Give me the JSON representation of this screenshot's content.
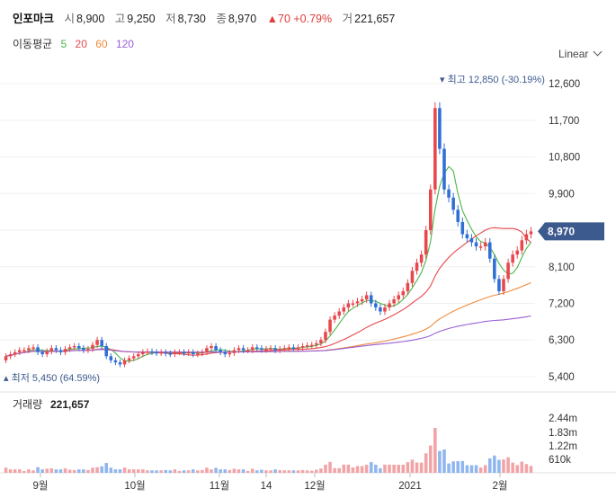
{
  "header": {
    "name": "인포마크",
    "open_label": "시",
    "open": "8,900",
    "high_label": "고",
    "high": "9,250",
    "low_label": "저",
    "low": "8,730",
    "close_label": "종",
    "close": "8,970",
    "change": "▲70 +0.79%",
    "volume_label": "거",
    "volume": "221,657"
  },
  "moving_average": {
    "label": "이동평균",
    "periods": [
      {
        "value": "5",
        "color": "#49b649"
      },
      {
        "value": "20",
        "color": "#e8474c"
      },
      {
        "value": "60",
        "color": "#ef8a3a"
      },
      {
        "value": "120",
        "color": "#9a5fd8"
      }
    ]
  },
  "scale_selector": {
    "label": "Linear",
    "icon": "chevron-down-icon"
  },
  "colors": {
    "up": "#e8474c",
    "down": "#2f6fd6",
    "badge": "#3d5a8e",
    "grid": "#f0f0f0"
  },
  "chart_data": {
    "type": "candlestick",
    "price_axis": {
      "ticks": [
        "12,600",
        "11,700",
        "10,800",
        "9,900",
        "9,000",
        "8,100",
        "7,200",
        "6,300",
        "5,400"
      ],
      "range": [
        5200,
        13000
      ]
    },
    "volume_axis": {
      "title": "거래량",
      "latest": "221,657",
      "ticks": [
        "2.44m",
        "1.83m",
        "1.22m",
        "610k"
      ]
    },
    "x_axis": {
      "ticks": [
        "9월",
        "10월",
        "11월",
        "14",
        "12월",
        "2021",
        "2월"
      ]
    },
    "current_price": "8,970",
    "high_annotation": "최고 12,850 (-30.19%)",
    "low_annotation": "최저 5,450 (64.59%)",
    "series": [
      {
        "name": "price",
        "open": [
          5800,
          5900,
          5950,
          6000,
          6050,
          6050,
          6100,
          6120,
          6000,
          5950,
          6020,
          6100,
          6050,
          6000,
          6080,
          6120,
          6150,
          6100,
          6050,
          6080,
          6180,
          6300,
          6150,
          5900,
          5800,
          5750,
          5700,
          5800,
          5850,
          5900,
          5950,
          6000,
          6020,
          6000,
          5980,
          6000,
          5970,
          5950,
          6000,
          6000,
          5980,
          6000,
          5950,
          5970,
          6000,
          6100,
          6150,
          6050,
          6000,
          5950,
          5980,
          6050,
          6100,
          6050,
          6050,
          6120,
          6100,
          6060,
          6080,
          6100,
          6050,
          6080,
          6100,
          6120,
          6100,
          6120,
          6150,
          6170,
          6180,
          6220,
          6300,
          6500,
          6800,
          6900,
          7000,
          7100,
          7200,
          7200,
          7250,
          7300,
          7400,
          7200,
          7100,
          7000,
          7100,
          7200,
          7300,
          7400,
          7500,
          7700,
          8000,
          8200,
          8400,
          9000,
          10000,
          12000,
          11000,
          10000,
          9800,
          9500,
          9200,
          8900,
          8800,
          8700,
          8600,
          8600,
          8700,
          8300,
          7800,
          7500,
          7800,
          8200,
          8400,
          8500,
          8750,
          8900
        ],
        "close": [
          5900,
          5950,
          6000,
          6050,
          6050,
          6100,
          6120,
          6000,
          5950,
          6020,
          6100,
          6050,
          6000,
          6080,
          6120,
          6150,
          6100,
          6050,
          6080,
          6180,
          6300,
          6150,
          5900,
          5800,
          5750,
          5700,
          5800,
          5850,
          5900,
          5950,
          6000,
          6020,
          6000,
          5980,
          6000,
          5970,
          5950,
          6000,
          6000,
          5980,
          6000,
          5950,
          5970,
          6000,
          6100,
          6150,
          6050,
          6000,
          5950,
          5980,
          6050,
          6100,
          6050,
          6050,
          6120,
          6100,
          6060,
          6080,
          6100,
          6050,
          6080,
          6100,
          6120,
          6100,
          6120,
          6150,
          6170,
          6180,
          6220,
          6300,
          6500,
          6800,
          6900,
          7000,
          7100,
          7200,
          7200,
          7250,
          7300,
          7400,
          7200,
          7100,
          7000,
          7100,
          7200,
          7300,
          7400,
          7500,
          7700,
          8000,
          8200,
          8400,
          9000,
          10000,
          12000,
          11000,
          10000,
          9800,
          9500,
          9200,
          8900,
          8800,
          8700,
          8600,
          8600,
          8700,
          8300,
          7800,
          7500,
          7800,
          8200,
          8400,
          8500,
          8750,
          8900,
          8970
        ]
      }
    ]
  }
}
